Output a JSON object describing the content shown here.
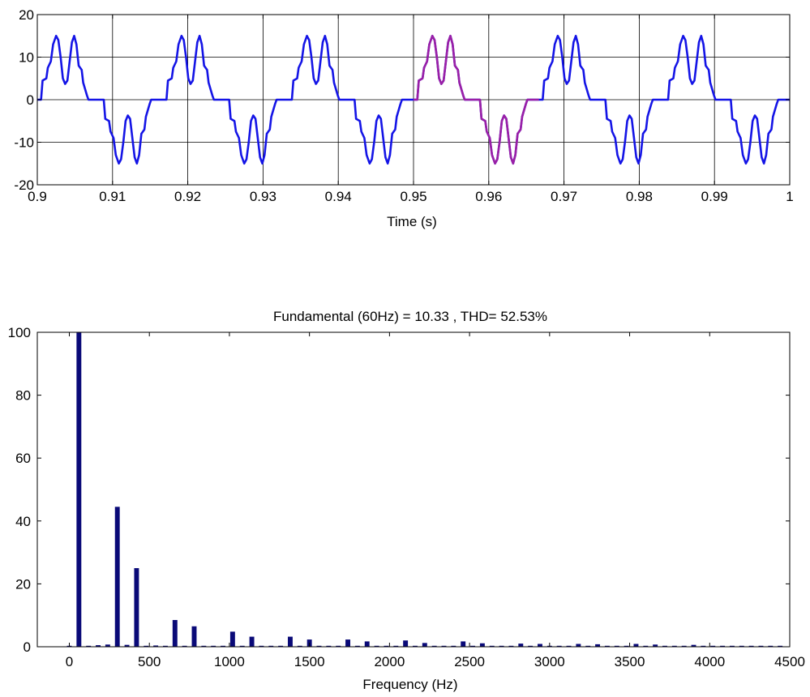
{
  "chart_data": [
    {
      "type": "line",
      "title": "",
      "xlabel": "Time (s)",
      "ylabel": "",
      "xlim": [
        0.9,
        1.0
      ],
      "ylim": [
        -20,
        20
      ],
      "xticks": [
        0.9,
        0.91,
        0.92,
        0.93,
        0.94,
        0.95,
        0.96,
        0.97,
        0.98,
        0.99,
        1
      ],
      "xtick_labels": [
        "0.9",
        "0.91",
        "0.92",
        "0.93",
        "0.94",
        "0.95",
        "0.96",
        "0.97",
        "0.98",
        "0.99",
        "1"
      ],
      "yticks": [
        -20,
        -10,
        0,
        10,
        20
      ],
      "ytick_labels": [
        "-20",
        "-10",
        "0",
        "10",
        "20"
      ],
      "grid": true,
      "period_s": 0.016667,
      "half_cycle_waveform": {
        "x": [
          0.0,
          0.0005,
          0.0007,
          0.0012,
          0.0014,
          0.0018,
          0.0021,
          0.0025,
          0.0028,
          0.0031,
          0.0034,
          0.0037,
          0.004,
          0.0043,
          0.0046,
          0.0049,
          0.0052,
          0.0055,
          0.0059,
          0.0061,
          0.0066,
          0.0068,
          0.00833
        ],
        "y": [
          0,
          0,
          4.5,
          5,
          7.5,
          9,
          13,
          15,
          14,
          10,
          5,
          3.7,
          4.5,
          9,
          13.5,
          15,
          13,
          8,
          7,
          4,
          1,
          0,
          0
        ]
      },
      "series": [
        {
          "name": "",
          "color": "#1414e6",
          "x_range": [
            0.9,
            1.0
          ]
        },
        {
          "name": "",
          "color": "#9b1fa6",
          "x_range": [
            0.95,
            0.96667
          ]
        }
      ]
    },
    {
      "type": "bar",
      "title": "Fundamental (60Hz) = 10.33 , THD= 52.53%",
      "xlabel": "Frequency (Hz)",
      "ylabel": "",
      "xlim": [
        -200,
        4500
      ],
      "ylim": [
        0,
        100
      ],
      "xticks": [
        0,
        500,
        1000,
        1500,
        2000,
        2500,
        3000,
        3500,
        4000,
        4500
      ],
      "xtick_labels": [
        "0",
        "500",
        "1000",
        "1500",
        "2000",
        "2500",
        "3000",
        "3500",
        "4000",
        "4500"
      ],
      "yticks": [
        0,
        20,
        40,
        60,
        80,
        100
      ],
      "ytick_labels": [
        "0",
        "20",
        "40",
        "60",
        "80",
        "100"
      ],
      "grid": false,
      "bar_color": "#0a0a78",
      "frequencies": [
        0,
        60,
        120,
        180,
        240,
        300,
        360,
        420,
        480,
        540,
        600,
        660,
        720,
        780,
        840,
        900,
        960,
        1020,
        1080,
        1140,
        1200,
        1260,
        1320,
        1380,
        1440,
        1500,
        1560,
        1620,
        1680,
        1740,
        1800,
        1860,
        1920,
        1980,
        2040,
        2100,
        2160,
        2220,
        2280,
        2340,
        2400,
        2460,
        2520,
        2580,
        2640,
        2700,
        2760,
        2820,
        2880,
        2940,
        3000,
        3060,
        3120,
        3180,
        3240,
        3300,
        3360,
        3420,
        3480,
        3540,
        3600,
        3660,
        3720,
        3780,
        3840,
        3900,
        3960,
        4020,
        4080,
        4140,
        4200,
        4260,
        4320,
        4380,
        4440
      ],
      "values": [
        0.3,
        100,
        0.2,
        0.5,
        0.7,
        44.5,
        0.6,
        25,
        0.3,
        0.4,
        0.3,
        8.5,
        0.3,
        6.5,
        0.3,
        0.3,
        0.3,
        4.8,
        0.3,
        3.2,
        0.3,
        0.3,
        0.3,
        3.2,
        0.3,
        2.3,
        0.3,
        0.3,
        0.3,
        2.3,
        0.3,
        1.7,
        0.3,
        0.3,
        0.3,
        2.0,
        0.3,
        1.2,
        0.3,
        0.3,
        0.3,
        1.7,
        0.3,
        1.1,
        0.3,
        0.3,
        0.3,
        1.0,
        0.3,
        0.9,
        0.3,
        0.3,
        0.3,
        0.9,
        0.3,
        0.8,
        0.3,
        0.3,
        0.3,
        0.9,
        0.3,
        0.7,
        0.3,
        0.3,
        0.3,
        0.6,
        0.3,
        0.3,
        0.3,
        0.3,
        0.3,
        0.3,
        0.3,
        0.3,
        0.3
      ]
    }
  ]
}
